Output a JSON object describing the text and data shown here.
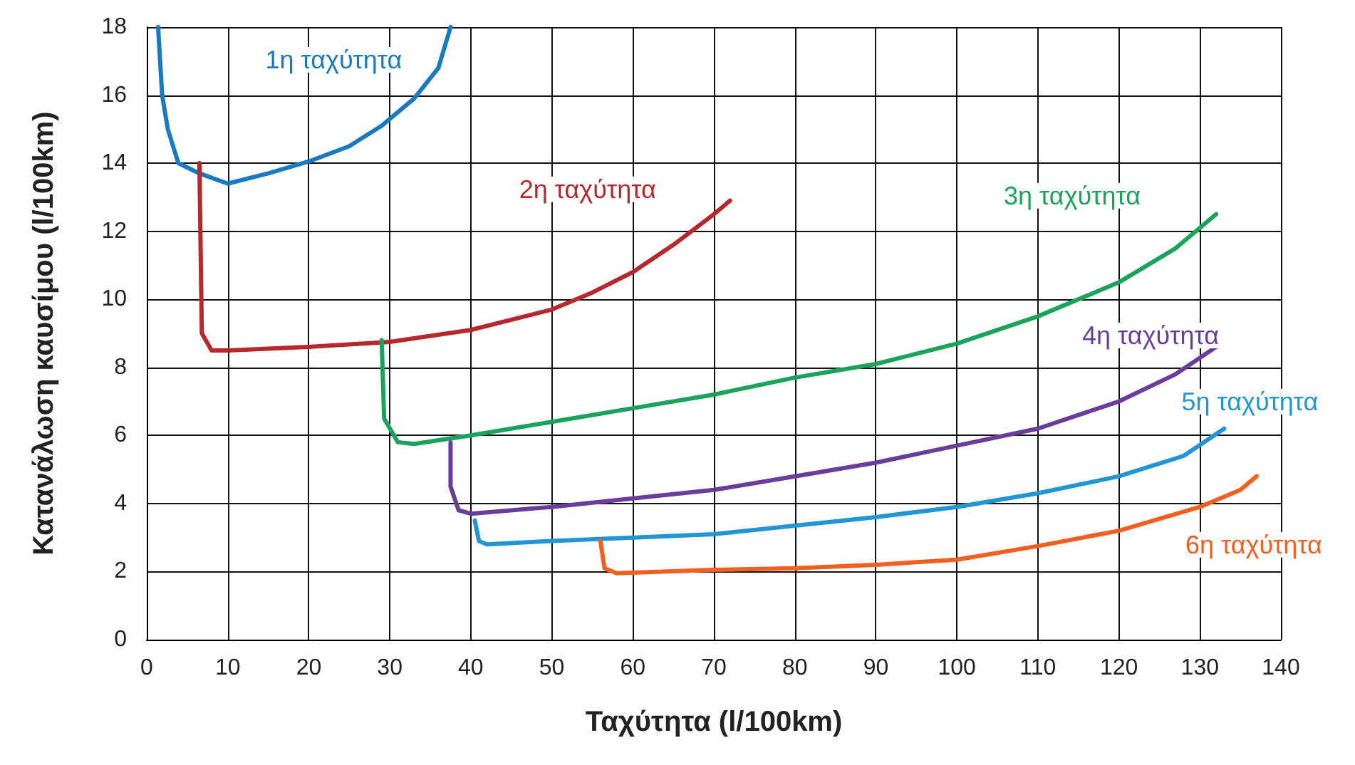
{
  "chart_data": {
    "type": "line",
    "xlabel": "Ταχύτητα (l/100km)",
    "ylabel": "Κατανάλωση καυσίμου (l/100km)",
    "xlim": [
      0,
      140
    ],
    "xticks": [
      0,
      10,
      20,
      30,
      40,
      50,
      60,
      70,
      80,
      90,
      100,
      110,
      120,
      130,
      140
    ],
    "ylim": [
      0,
      18
    ],
    "yticks": [
      0,
      2,
      4,
      6,
      8,
      10,
      12,
      14,
      16,
      18
    ],
    "grid": true,
    "legend": false,
    "marker": "none",
    "line_style": "solid",
    "series": [
      {
        "name": "1η ταχύτητα",
        "color": "#1a7abf",
        "x": [
          1.4,
          1.9,
          2.6,
          3.9,
          6.5,
          10,
          15,
          20,
          25,
          29,
          33,
          36,
          37.5
        ],
        "values": [
          18,
          16,
          15,
          14,
          13.7,
          13.4,
          13.7,
          14.05,
          14.5,
          15.1,
          15.9,
          16.8,
          18
        ]
      },
      {
        "name": "2η ταχύτητα",
        "color": "#b5282e",
        "x": [
          6.5,
          6.8,
          8,
          10,
          20,
          30,
          40,
          50,
          55,
          60,
          65,
          70,
          72
        ],
        "values": [
          14,
          9,
          8.5,
          8.5,
          8.6,
          8.75,
          9.1,
          9.7,
          10.2,
          10.8,
          11.6,
          12.5,
          12.9
        ]
      },
      {
        "name": "3η ταχύτητα",
        "color": "#1aa35a",
        "x": [
          29,
          29.3,
          31,
          33,
          40,
          50,
          60,
          70,
          80,
          90,
          100,
          110,
          120,
          127,
          132
        ],
        "values": [
          8.8,
          6.5,
          5.8,
          5.75,
          6,
          6.4,
          6.8,
          7.2,
          7.7,
          8.1,
          8.7,
          9.5,
          10.5,
          11.5,
          12.5
        ]
      },
      {
        "name": "4η ταχύτητα",
        "color": "#6a3d9a",
        "x": [
          37.5,
          37.5,
          38.5,
          40,
          50,
          60,
          70,
          80,
          90,
          100,
          110,
          120,
          127,
          132
        ],
        "values": [
          5.8,
          4.5,
          3.8,
          3.7,
          3.9,
          4.15,
          4.4,
          4.8,
          5.2,
          5.7,
          6.2,
          7,
          7.8,
          8.6
        ]
      },
      {
        "name": "5η ταχύτητα",
        "color": "#2196d3",
        "x": [
          40.5,
          41,
          42,
          50,
          60,
          70,
          80,
          90,
          100,
          110,
          120,
          128,
          133
        ],
        "values": [
          3.5,
          2.9,
          2.8,
          2.9,
          3,
          3.1,
          3.35,
          3.6,
          3.9,
          4.3,
          4.8,
          5.4,
          6.2
        ]
      },
      {
        "name": "6η ταχύτητα",
        "color": "#f06020",
        "x": [
          56,
          56.5,
          58,
          70,
          80,
          90,
          100,
          110,
          120,
          130,
          135,
          137
        ],
        "values": [
          2.9,
          2.1,
          1.95,
          2.05,
          2.1,
          2.2,
          2.35,
          2.75,
          3.2,
          3.9,
          4.4,
          4.8
        ]
      }
    ]
  }
}
